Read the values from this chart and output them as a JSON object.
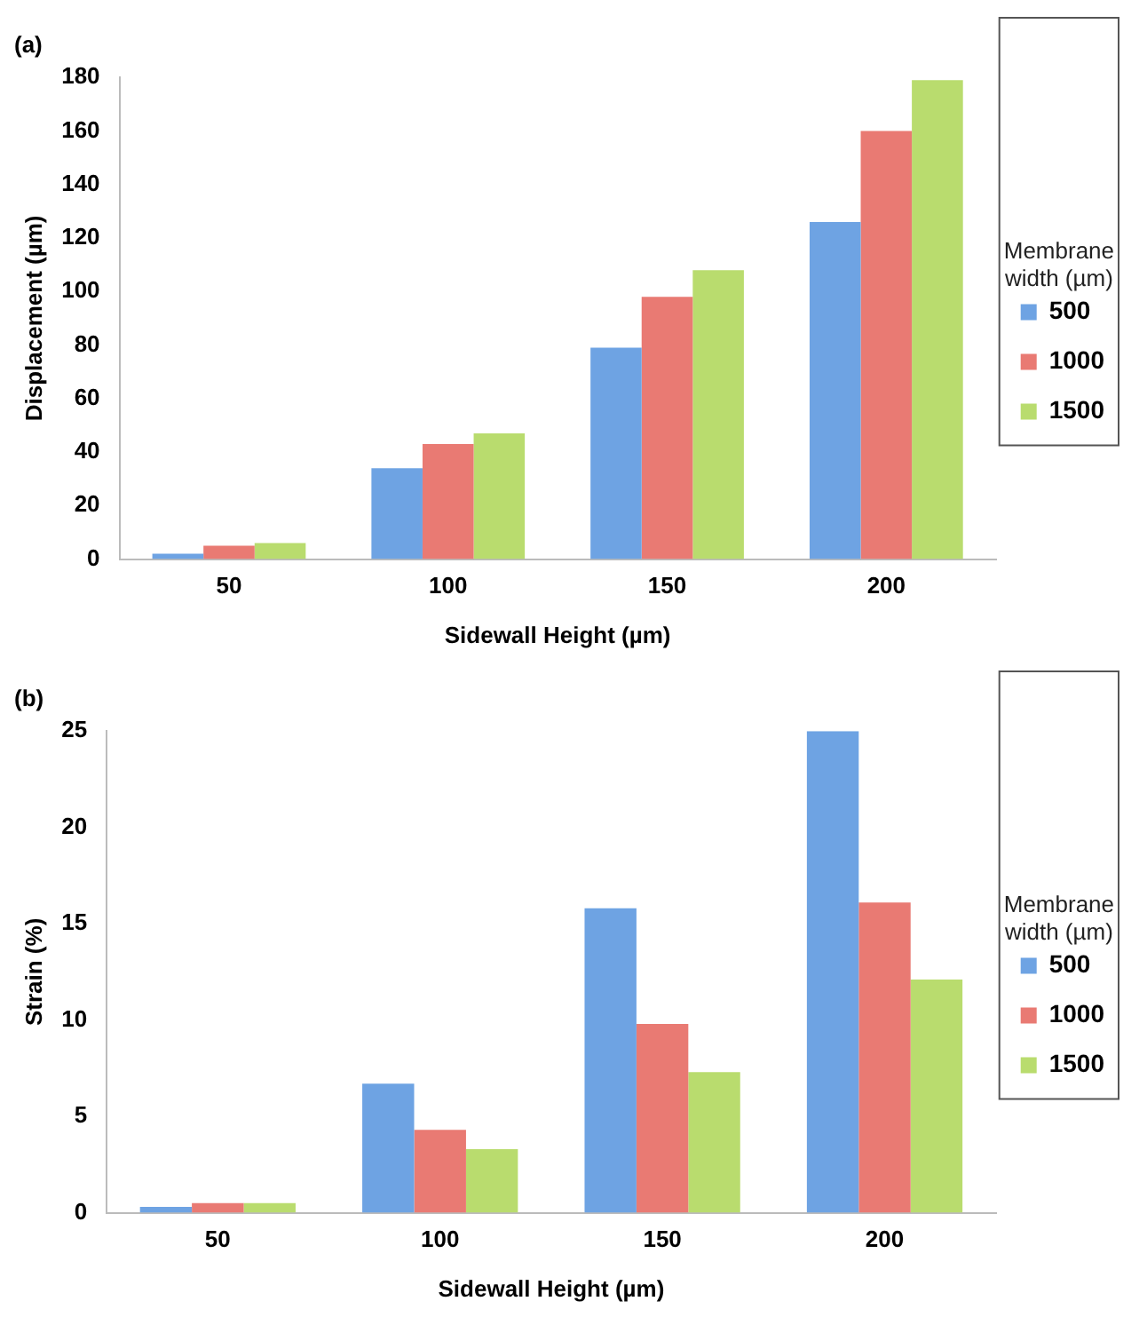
{
  "chart_data": [
    {
      "type": "bar",
      "title": "(a)",
      "xlabel": "Sidewall Height (µm)",
      "ylabel": "Displacement (µm)",
      "legend_title": "Membrane width (µm)",
      "categories": [
        "50",
        "100",
        "150",
        "200"
      ],
      "series": [
        {
          "name": "500",
          "color": "#6ea3e3",
          "values": [
            2,
            34,
            79,
            126
          ]
        },
        {
          "name": "1000",
          "color": "#e97a73",
          "values": [
            5,
            43,
            98,
            160
          ]
        },
        {
          "name": "1500",
          "color": "#b9dc6e",
          "values": [
            6,
            47,
            108,
            179
          ]
        }
      ],
      "ylim": [
        0,
        180
      ],
      "yticks": [
        0,
        20,
        40,
        60,
        80,
        100,
        120,
        140,
        160,
        180
      ],
      "grid": false,
      "legend": "right"
    },
    {
      "type": "bar",
      "title": "(b)",
      "xlabel": "Sidewall Height (µm)",
      "ylabel": "Strain (%)",
      "legend_title": "Membrane width (µm)",
      "categories": [
        "50",
        "100",
        "150",
        "200"
      ],
      "series": [
        {
          "name": "500",
          "color": "#6ea3e3",
          "values": [
            0.3,
            6.7,
            15.8,
            25
          ]
        },
        {
          "name": "1000",
          "color": "#e97a73",
          "values": [
            0.5,
            4.3,
            9.8,
            16.1
          ]
        },
        {
          "name": "1500",
          "color": "#b9dc6e",
          "values": [
            0.5,
            3.3,
            7.3,
            12.1
          ]
        }
      ],
      "ylim": [
        0,
        25
      ],
      "yticks": [
        0,
        5,
        10,
        15,
        20,
        25
      ],
      "grid": false,
      "legend": "right"
    }
  ]
}
